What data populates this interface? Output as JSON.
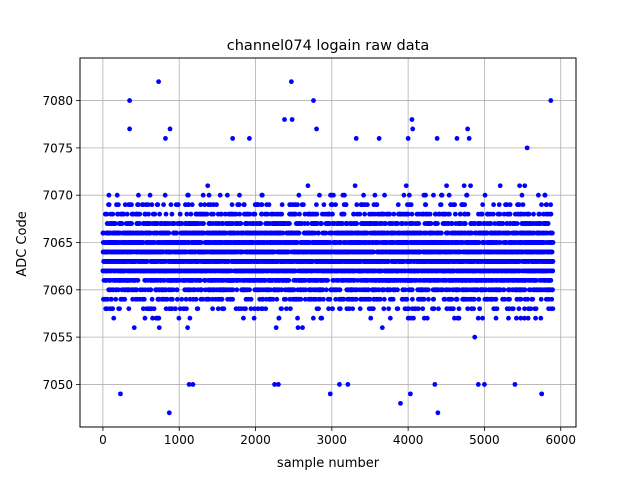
{
  "chart_data": {
    "type": "scatter",
    "title": "channel074 logain raw data",
    "xlabel": "sample number",
    "ylabel": "ADC Code",
    "xlim": [
      -300,
      6200
    ],
    "ylim": [
      7045.5,
      7084.5
    ],
    "x_ticks": [
      0,
      1000,
      2000,
      3000,
      4000,
      5000,
      6000
    ],
    "x_tick_labels": [
      "0",
      "1000",
      "2000",
      "3000",
      "4000",
      "5000",
      "6000"
    ],
    "y_ticks": [
      7050,
      7055,
      7060,
      7065,
      7070,
      7075,
      7080
    ],
    "y_tick_labels": [
      "7050",
      "7055",
      "7060",
      "7065",
      "7070",
      "7075",
      "7080"
    ],
    "grid": true,
    "marker_color": "#0000ff",
    "n_points": 5900,
    "x_range": [
      0,
      5899
    ],
    "core_value_range": [
      7054,
      7073
    ],
    "series": [
      {
        "values_described": "dense band of integer ADC codes between 7054 and 7073 across samples 0-5899",
        "outliers": [
          {
            "x": 230,
            "y": 7049
          },
          {
            "x": 350,
            "y": 7080
          },
          {
            "x": 350,
            "y": 7077
          },
          {
            "x": 730,
            "y": 7082
          },
          {
            "x": 870,
            "y": 7047
          },
          {
            "x": 880,
            "y": 7077
          },
          {
            "x": 820,
            "y": 7076
          },
          {
            "x": 1130,
            "y": 7050
          },
          {
            "x": 1180,
            "y": 7050
          },
          {
            "x": 1700,
            "y": 7076
          },
          {
            "x": 1920,
            "y": 7076
          },
          {
            "x": 2250,
            "y": 7050
          },
          {
            "x": 2300,
            "y": 7050
          },
          {
            "x": 2380,
            "y": 7078
          },
          {
            "x": 2470,
            "y": 7082
          },
          {
            "x": 2480,
            "y": 7078
          },
          {
            "x": 2760,
            "y": 7080
          },
          {
            "x": 2800,
            "y": 7077
          },
          {
            "x": 2980,
            "y": 7049
          },
          {
            "x": 3100,
            "y": 7050
          },
          {
            "x": 3210,
            "y": 7050
          },
          {
            "x": 3320,
            "y": 7076
          },
          {
            "x": 3620,
            "y": 7076
          },
          {
            "x": 3900,
            "y": 7048
          },
          {
            "x": 4030,
            "y": 7049
          },
          {
            "x": 4050,
            "y": 7078
          },
          {
            "x": 4060,
            "y": 7077
          },
          {
            "x": 4000,
            "y": 7076
          },
          {
            "x": 4350,
            "y": 7050
          },
          {
            "x": 4390,
            "y": 7047
          },
          {
            "x": 4380,
            "y": 7076
          },
          {
            "x": 4640,
            "y": 7076
          },
          {
            "x": 4780,
            "y": 7077
          },
          {
            "x": 4800,
            "y": 7076
          },
          {
            "x": 4920,
            "y": 7050
          },
          {
            "x": 5000,
            "y": 7050
          },
          {
            "x": 5400,
            "y": 7050
          },
          {
            "x": 5560,
            "y": 7075
          },
          {
            "x": 5750,
            "y": 7049
          },
          {
            "x": 5870,
            "y": 7080
          }
        ]
      }
    ]
  }
}
